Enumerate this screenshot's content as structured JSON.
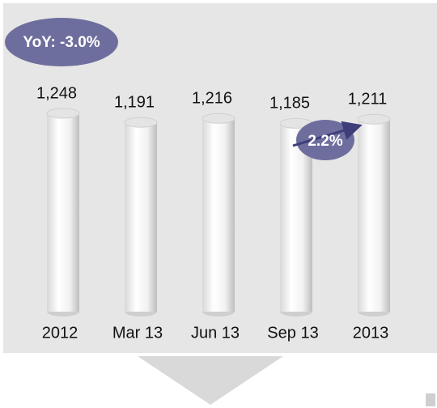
{
  "chart_data": {
    "type": "bar",
    "categories": [
      "2012",
      "Mar 13",
      "Jun 13",
      "Sep 13",
      "2013"
    ],
    "values": [
      1248,
      1191,
      1216,
      1185,
      1211
    ],
    "value_labels": [
      "1,248",
      "1,191",
      "1,216",
      "1,185",
      "1,211"
    ],
    "annotations": [
      "YoY: -3.0%",
      "2.2%"
    ]
  }
}
